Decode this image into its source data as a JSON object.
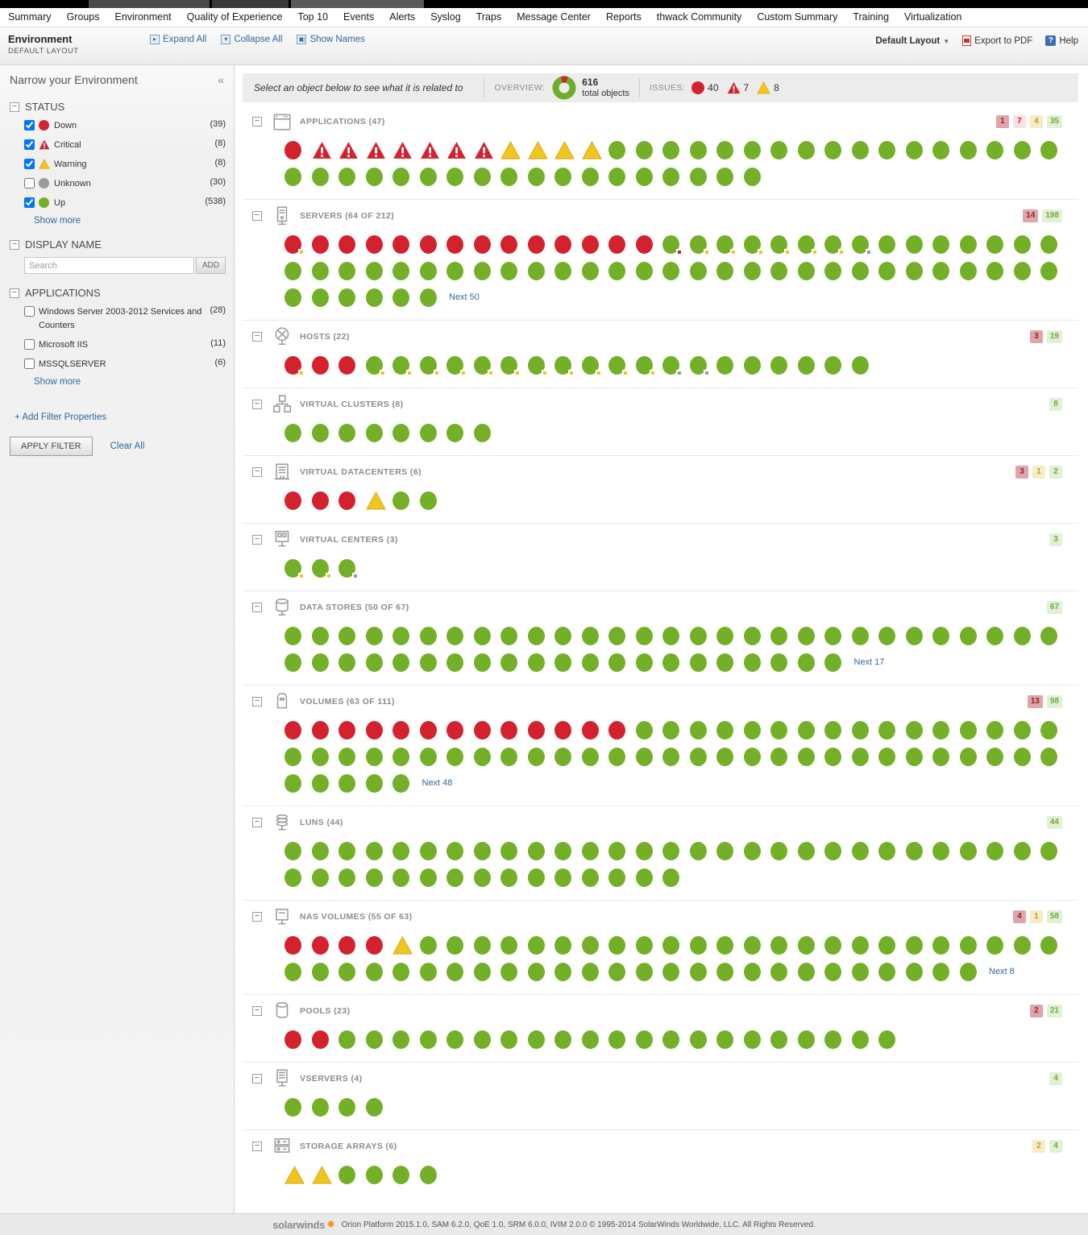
{
  "nav": {
    "items": [
      "Summary",
      "Groups",
      "Environment",
      "Quality of Experience",
      "Top 10",
      "Events",
      "Alerts",
      "Syslog",
      "Traps",
      "Message Center",
      "Reports",
      "thwack Community",
      "Custom Summary",
      "Training",
      "Virtualization"
    ]
  },
  "header": {
    "title": "Environment",
    "subtitle": "DEFAULT LAYOUT",
    "expand_all": "Expand All",
    "collapse_all": "Collapse All",
    "show_names": "Show Names",
    "layout_selector": "Default Layout",
    "export_pdf": "Export to PDF",
    "help": "Help"
  },
  "sidebar": {
    "title": "Narrow your Environment",
    "status": {
      "label": "STATUS",
      "items": [
        {
          "label": "Down",
          "count": "(39)",
          "checked": true,
          "icon": "down"
        },
        {
          "label": "Critical",
          "count": "(8)",
          "checked": true,
          "icon": "critical"
        },
        {
          "label": "Warning",
          "count": "(8)",
          "checked": true,
          "icon": "warning"
        },
        {
          "label": "Unknown",
          "count": "(30)",
          "checked": false,
          "icon": "unknown"
        },
        {
          "label": "Up",
          "count": "(538)",
          "checked": true,
          "icon": "up"
        }
      ],
      "show_more": "Show more"
    },
    "display_name": {
      "label": "DISPLAY NAME",
      "placeholder": "Search",
      "add_label": "ADD"
    },
    "applications": {
      "label": "APPLICATIONS",
      "items": [
        {
          "label": "Windows Server 2003-2012 Services and Counters",
          "count": "(28)",
          "checked": false
        },
        {
          "label": "Microsoft IIS",
          "count": "(11)",
          "checked": false
        },
        {
          "label": "MSSQLSERVER",
          "count": "(6)",
          "checked": false
        }
      ],
      "show_more": "Show more"
    },
    "add_filter": "+ Add Filter Properties",
    "apply_filter": "APPLY FILTER",
    "clear_all": "Clear All"
  },
  "overview_bar": {
    "hint": "Select an object below to see what it is related to",
    "overview_label": "OVERVIEW:",
    "total_count": "616",
    "total_label": "total objects",
    "issues_label": "ISSUES:",
    "issues": [
      {
        "type": "down",
        "count": "40"
      },
      {
        "type": "critical",
        "count": "7"
      },
      {
        "type": "warning",
        "count": "8"
      }
    ]
  },
  "colors": {
    "up": "#74b027",
    "down": "#d3222d",
    "warning": "#f2c51d",
    "critical": "#d3222d",
    "unknown": "#9b9b9b",
    "link": "#336699",
    "brand_orange": "#f7941d"
  },
  "sections": [
    {
      "id": "applications",
      "title": "APPLICATIONS (47)",
      "icon": "applications-icon",
      "badges": [
        {
          "type": "down",
          "value": "1"
        },
        {
          "type": "critical",
          "value": "7"
        },
        {
          "type": "warning",
          "value": "4"
        },
        {
          "type": "up",
          "value": "35"
        }
      ],
      "rows": [
        "D,C*7,W*4,U*17",
        "U*18"
      ]
    },
    {
      "id": "servers",
      "title": "SERVERS (64 OF 212)",
      "icon": "servers-icon",
      "badges": [
        {
          "type": "down",
          "value": "14"
        },
        {
          "type": "up",
          "value": "198"
        }
      ],
      "rows": [
        "D.y,D*13,U.r,U.y*6,U.g,U*7",
        "U*29",
        "U*6"
      ],
      "next": "Next 50"
    },
    {
      "id": "hosts",
      "title": "HOSTS (22)",
      "icon": "hosts-icon",
      "badges": [
        {
          "type": "down",
          "value": "3"
        },
        {
          "type": "up",
          "value": "19"
        }
      ],
      "rows": [
        "D.y,D*2,U.y*11,U.g*2,U*6"
      ]
    },
    {
      "id": "virtual-clusters",
      "title": "VIRTUAL CLUSTERS (8)",
      "icon": "virtual-clusters-icon",
      "badges": [
        {
          "type": "up",
          "value": "8"
        }
      ],
      "rows": [
        "U*8"
      ]
    },
    {
      "id": "virtual-datacenters",
      "title": "VIRTUAL DATACENTERS (6)",
      "icon": "virtual-datacenters-icon",
      "badges": [
        {
          "type": "down",
          "value": "3"
        },
        {
          "type": "warning",
          "value": "1"
        },
        {
          "type": "up",
          "value": "2"
        }
      ],
      "rows": [
        "D*3,W,U*2"
      ]
    },
    {
      "id": "virtual-centers",
      "title": "VIRTUAL CENTERS (3)",
      "icon": "virtual-centers-icon",
      "badges": [
        {
          "type": "up",
          "value": "3"
        }
      ],
      "rows": [
        "U.y*2,U.g"
      ]
    },
    {
      "id": "data-stores",
      "title": "DATA STORES (50 OF 67)",
      "icon": "data-stores-icon",
      "badges": [
        {
          "type": "up",
          "value": "67"
        }
      ],
      "rows": [
        "U*29",
        "U*21"
      ],
      "next": "Next 17"
    },
    {
      "id": "volumes",
      "title": "VOLUMES (63 OF 111)",
      "icon": "volumes-icon",
      "badges": [
        {
          "type": "down",
          "value": "13"
        },
        {
          "type": "up",
          "value": "98"
        }
      ],
      "rows": [
        "D*13,U*16",
        "U*29",
        "U*5"
      ],
      "next": "Next 48"
    },
    {
      "id": "luns",
      "title": "LUNS (44)",
      "icon": "luns-icon",
      "badges": [
        {
          "type": "up",
          "value": "44"
        }
      ],
      "rows": [
        "U*29",
        "U*15"
      ]
    },
    {
      "id": "nas-volumes",
      "title": "NAS VOLUMES (55 OF 63)",
      "icon": "nas-volumes-icon",
      "badges": [
        {
          "type": "down",
          "value": "4"
        },
        {
          "type": "warning",
          "value": "1"
        },
        {
          "type": "up",
          "value": "58"
        }
      ],
      "rows": [
        "D*4,W,U*24",
        "U*26"
      ],
      "next": "Next 8"
    },
    {
      "id": "pools",
      "title": "POOLS (23)",
      "icon": "pools-icon",
      "badges": [
        {
          "type": "down",
          "value": "2"
        },
        {
          "type": "up",
          "value": "21"
        }
      ],
      "rows": [
        "D*2,U*21"
      ]
    },
    {
      "id": "vservers",
      "title": "VSERVERS (4)",
      "icon": "vservers-icon",
      "badges": [
        {
          "type": "up",
          "value": "4"
        }
      ],
      "rows": [
        "U*4"
      ]
    },
    {
      "id": "storage-arrays",
      "title": "STORAGE ARRAYS (6)",
      "icon": "storage-arrays-icon",
      "badges": [
        {
          "type": "warning",
          "value": "2"
        },
        {
          "type": "up",
          "value": "4"
        }
      ],
      "rows": [
        "W*2,U*4"
      ]
    }
  ],
  "footer": {
    "brand": "solarwinds",
    "text": "Orion Platform 2015.1.0, SAM 6.2.0, QoE 1.0, SRM 6.0.0, IVIM 2.0.0 © 1995-2014 SolarWinds Worldwide, LLC. All Rights Reserved."
  }
}
